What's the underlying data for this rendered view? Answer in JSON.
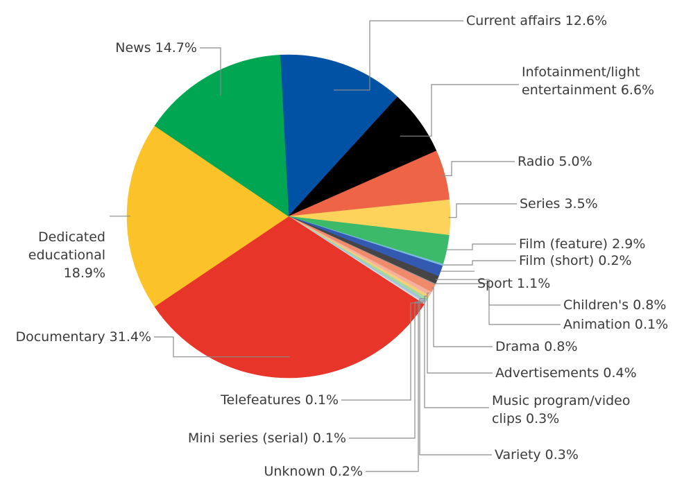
{
  "chart_data": {
    "type": "pie",
    "start_angle_deg": -93,
    "direction": "clockwise",
    "slices": [
      {
        "key": "current_affairs",
        "label": "Current affairs 12.6%",
        "value": 12.6,
        "color": "#0052a5"
      },
      {
        "key": "infotainment",
        "label": "Infotainment/light entertainment 6.6%",
        "label_lines": [
          "Infotainment/light",
          "entertainment 6.6%"
        ],
        "value": 6.6,
        "color": "#000000"
      },
      {
        "key": "radio",
        "label": "Radio 5.0%",
        "value": 5.0,
        "color": "#ee6446"
      },
      {
        "key": "series",
        "label": "Series 3.5%",
        "value": 3.5,
        "color": "#fdd35b"
      },
      {
        "key": "film_feature",
        "label": "Film (feature) 2.9%",
        "value": 2.9,
        "color": "#3db96a"
      },
      {
        "key": "film_short",
        "label": "Film (short) 0.2%",
        "value": 0.2,
        "color": "#7ab9dd"
      },
      {
        "key": "sport",
        "label": "Sport 1.1%",
        "value": 1.1,
        "color": "#3359b0"
      },
      {
        "key": "childrens",
        "label": "Children's 0.8%",
        "value": 0.8,
        "color": "#454545"
      },
      {
        "key": "animation",
        "label": "Animation 0.1%",
        "value": 0.1,
        "color": "#9a9a9a"
      },
      {
        "key": "drama",
        "label": "Drama 0.8%",
        "value": 0.8,
        "color": "#f08a6a"
      },
      {
        "key": "advertisements",
        "label": "Advertisements 0.4%",
        "value": 0.4,
        "color": "#f5b0a0"
      },
      {
        "key": "music",
        "label": "Music program/video clips 0.3%",
        "label_lines": [
          "Music program/video",
          "clips 0.3%"
        ],
        "value": 0.3,
        "color": "#f7cf7a"
      },
      {
        "key": "variety",
        "label": "Variety 0.3%",
        "value": 0.3,
        "color": "#a7d8a0"
      },
      {
        "key": "unknown",
        "label": "Unknown 0.2%",
        "value": 0.2,
        "color": "#9fc4e4"
      },
      {
        "key": "mini_series",
        "label": "Mini series (serial) 0.1%",
        "value": 0.1,
        "color": "#cfcfcf"
      },
      {
        "key": "telefeatures",
        "label": "Telefeatures 0.1%",
        "value": 0.1,
        "color": "#e6e6e6"
      },
      {
        "key": "documentary",
        "label": "Documentary 31.4%",
        "value": 31.4,
        "color": "#e8352a"
      },
      {
        "key": "dedicated_educational",
        "label": "Dedicated educational 18.9%",
        "label_lines": [
          "Dedicated",
          "educational",
          "18.9%"
        ],
        "value": 18.9,
        "color": "#fcc22a"
      },
      {
        "key": "news",
        "label": "News 14.7%",
        "value": 14.7,
        "color": "#00a651"
      }
    ]
  }
}
